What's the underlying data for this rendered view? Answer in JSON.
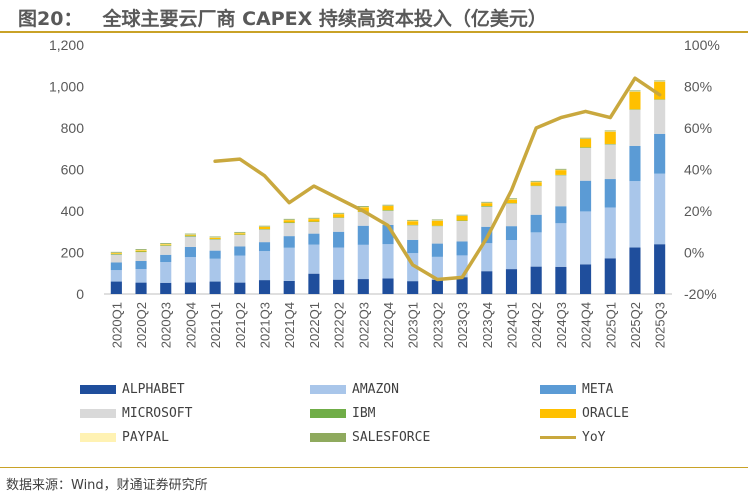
{
  "title": {
    "figure_no": "图20：",
    "text": "全球主要云厂商 CAPEX 持续高资本投入（亿美元）"
  },
  "source": "数据来源：Wind，财通证券研究所",
  "colors": {
    "accent_rule": "#c9a227"
  },
  "chart_data": {
    "type": "bar",
    "stacked": true,
    "categories": [
      "2020Q1",
      "2020Q2",
      "2020Q3",
      "2020Q4",
      "2021Q1",
      "2021Q2",
      "2021Q3",
      "2021Q4",
      "2022Q1",
      "2022Q2",
      "2022Q3",
      "2022Q4",
      "2023Q1",
      "2023Q2",
      "2023Q3",
      "2023Q4",
      "2024Q1",
      "2024Q2",
      "2024Q3",
      "2024Q4",
      "2025Q1",
      "2025Q2",
      "2025Q3"
    ],
    "ylim": [
      0,
      1200
    ],
    "yticks": [
      "0",
      "200",
      "400",
      "600",
      "800",
      "1,000",
      "1,200"
    ],
    "y2lim": [
      -20,
      100
    ],
    "y2ticks": [
      "-20%",
      "0%",
      "20%",
      "40%",
      "60%",
      "80%",
      "100%"
    ],
    "grid": false,
    "series": [
      {
        "name": "ALPHABET",
        "color": "#1f4e9c",
        "values": [
          60,
          55,
          54,
          56,
          60,
          55,
          67,
          63,
          98,
          69,
          72,
          75,
          62,
          69,
          81,
          110,
          120,
          132,
          131,
          143,
          172,
          224,
          240
        ]
      },
      {
        "name": "AMAZON",
        "color": "#a9c6ea",
        "values": [
          55,
          65,
          100,
          122,
          110,
          130,
          140,
          160,
          140,
          155,
          165,
          165,
          135,
          110,
          105,
          135,
          140,
          165,
          210,
          255,
          245,
          320,
          340
        ]
      },
      {
        "name": "META",
        "color": "#5b9bd5",
        "values": [
          37,
          39,
          35,
          49,
          39,
          44,
          43,
          56,
          53,
          76,
          92,
          93,
          64,
          64,
          67,
          79,
          67,
          85,
          82,
          148,
          137,
          170,
          192
        ]
      },
      {
        "name": "MICROSOFT",
        "color": "#d9d9d9",
        "values": [
          38,
          43,
          43,
          50,
          54,
          56,
          61,
          63,
          56,
          67,
          66,
          68,
          70,
          84,
          99,
          97,
          109,
          138,
          149,
          158,
          167,
          174,
          164
        ]
      },
      {
        "name": "IBM",
        "color": "#70ad47",
        "values": [
          3,
          3,
          3,
          4,
          2,
          2,
          2,
          3,
          2,
          2,
          2,
          3,
          2,
          2,
          2,
          3,
          2,
          2,
          2,
          3,
          2,
          2,
          2
        ]
      },
      {
        "name": "ORACLE",
        "color": "#ffc000",
        "values": [
          4,
          5,
          4,
          4,
          6,
          6,
          10,
          11,
          12,
          16,
          21,
          20,
          18,
          24,
          22,
          14,
          17,
          17,
          23,
          40,
          59,
          85,
          85
        ]
      },
      {
        "name": "PAYPAL",
        "color": "#fff2b3",
        "values": [
          2,
          2,
          2,
          2,
          2,
          2,
          2,
          2,
          2,
          2,
          2,
          2,
          2,
          2,
          2,
          2,
          2,
          2,
          2,
          2,
          2,
          2,
          2
        ]
      },
      {
        "name": "SALESFORCE",
        "color": "#8faa5e",
        "values": [
          4,
          4,
          4,
          4,
          4,
          4,
          4,
          4,
          4,
          4,
          4,
          4,
          4,
          4,
          4,
          4,
          4,
          4,
          4,
          4,
          4,
          4,
          4
        ]
      }
    ],
    "line": {
      "name": "YoY",
      "color": "#c9a83e",
      "axis": "right",
      "values": [
        null,
        null,
        null,
        null,
        44,
        45,
        37,
        24,
        32,
        26,
        20,
        13,
        -6,
        -13,
        -12,
        7,
        30,
        60,
        65,
        68,
        65,
        84,
        76
      ]
    },
    "legend_position": "bottom"
  }
}
